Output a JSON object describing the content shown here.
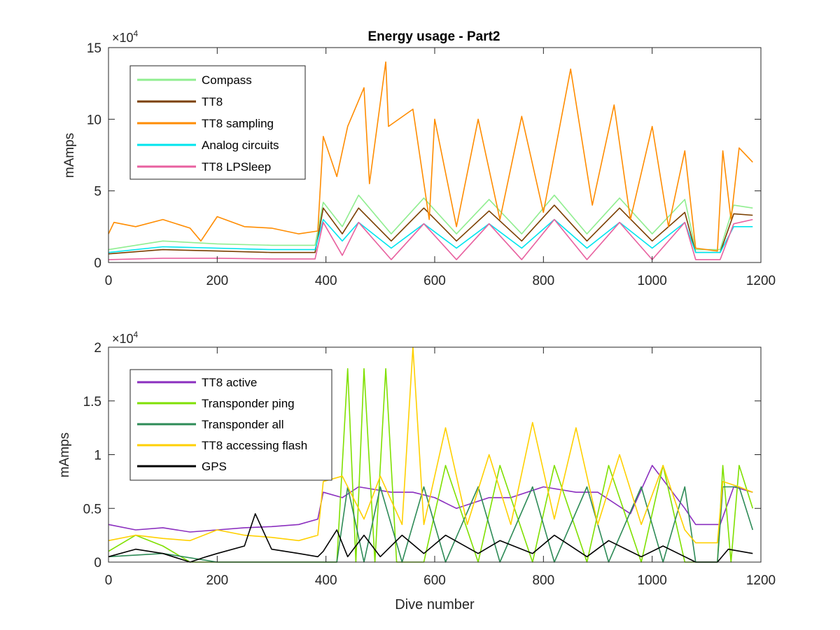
{
  "chart_data": [
    {
      "type": "line",
      "title": "Energy usage - Part2",
      "xlabel": "",
      "ylabel": "mAmps",
      "exponent_label": "×10",
      "exponent_power": "4",
      "xlim": [
        0,
        1200
      ],
      "ylim": [
        0,
        150000
      ],
      "xticks": [
        0,
        200,
        400,
        600,
        800,
        1000,
        1200
      ],
      "yticks": [
        0,
        50000,
        100000,
        150000
      ],
      "ytick_labels": [
        "0",
        "5",
        "10",
        "15"
      ],
      "legend_position": "top-left",
      "series": [
        {
          "name": "Compass",
          "color": "#90ee90",
          "x": [
            0,
            100,
            200,
            300,
            380,
            395,
            430,
            460,
            520,
            580,
            640,
            700,
            760,
            820,
            880,
            940,
            1000,
            1060,
            1080,
            1125,
            1150,
            1185
          ],
          "y": [
            9000,
            15000,
            13000,
            12000,
            12000,
            42000,
            25000,
            47000,
            20000,
            45000,
            20000,
            44000,
            20000,
            47000,
            20000,
            45000,
            20000,
            44000,
            9000,
            9000,
            40000,
            38000
          ]
        },
        {
          "name": "TT8",
          "color": "#7b3f00",
          "x": [
            0,
            100,
            200,
            300,
            380,
            395,
            430,
            460,
            520,
            580,
            640,
            700,
            760,
            820,
            880,
            940,
            1000,
            1060,
            1080,
            1125,
            1150,
            1185
          ],
          "y": [
            6000,
            9000,
            8000,
            7000,
            7000,
            38000,
            20000,
            38000,
            15000,
            38000,
            15000,
            36000,
            15000,
            40000,
            15000,
            38000,
            15000,
            35000,
            7000,
            7000,
            34000,
            33000
          ]
        },
        {
          "name": "TT8 sampling",
          "color": "#ff8c00",
          "x": [
            0,
            10,
            50,
            100,
            150,
            170,
            200,
            250,
            300,
            350,
            385,
            395,
            420,
            440,
            470,
            480,
            510,
            515,
            560,
            590,
            600,
            640,
            680,
            720,
            760,
            800,
            850,
            890,
            930,
            960,
            1000,
            1030,
            1060,
            1080,
            1120,
            1130,
            1145,
            1160,
            1185
          ],
          "y": [
            20000,
            28000,
            25000,
            30000,
            24000,
            15000,
            32000,
            25000,
            24000,
            20000,
            22000,
            88000,
            60000,
            95000,
            122000,
            55000,
            140000,
            95000,
            107000,
            30000,
            100000,
            25000,
            100000,
            30000,
            102000,
            35000,
            135000,
            40000,
            110000,
            30000,
            95000,
            25000,
            78000,
            10000,
            8000,
            78000,
            30000,
            80000,
            70000
          ]
        },
        {
          "name": "Analog circuits",
          "color": "#00e5ee",
          "x": [
            0,
            100,
            200,
            300,
            380,
            395,
            430,
            460,
            520,
            580,
            640,
            700,
            760,
            820,
            880,
            940,
            1000,
            1060,
            1080,
            1125,
            1150,
            1185
          ],
          "y": [
            7000,
            11000,
            10000,
            9000,
            9000,
            30000,
            15000,
            28000,
            10000,
            27000,
            10000,
            27000,
            10000,
            30000,
            10000,
            28000,
            10000,
            28000,
            7000,
            7000,
            25000,
            25000
          ]
        },
        {
          "name": "TT8 LPSleep",
          "color": "#e8609f",
          "x": [
            0,
            100,
            200,
            300,
            380,
            395,
            430,
            460,
            520,
            580,
            640,
            700,
            760,
            820,
            880,
            940,
            1000,
            1060,
            1080,
            1125,
            1150,
            1185
          ],
          "y": [
            2000,
            3000,
            3000,
            2500,
            2500,
            28000,
            5000,
            28000,
            2000,
            27000,
            2000,
            27000,
            2000,
            30000,
            2000,
            28000,
            2000,
            28000,
            2000,
            2000,
            27000,
            30000
          ]
        }
      ]
    },
    {
      "type": "line",
      "title": "",
      "xlabel": "Dive number",
      "ylabel": "mAmps",
      "exponent_label": "×10",
      "exponent_power": "4",
      "xlim": [
        0,
        1200
      ],
      "ylim": [
        0,
        20000
      ],
      "xticks": [
        0,
        200,
        400,
        600,
        800,
        1000,
        1200
      ],
      "yticks": [
        0,
        5000,
        10000,
        15000,
        20000
      ],
      "ytick_labels": [
        "0",
        "0.5",
        "1",
        "1.5",
        "2"
      ],
      "legend_position": "top-left",
      "series": [
        {
          "name": "TT8 active",
          "color": "#8b2fbf",
          "x": [
            0,
            50,
            100,
            150,
            200,
            250,
            300,
            350,
            385,
            395,
            430,
            460,
            520,
            560,
            600,
            640,
            700,
            740,
            800,
            860,
            900,
            960,
            1000,
            1060,
            1080,
            1125,
            1150,
            1185
          ],
          "y": [
            3500,
            3000,
            3200,
            2800,
            3000,
            3200,
            3300,
            3500,
            4000,
            6500,
            6000,
            7000,
            6500,
            6500,
            6000,
            5000,
            6000,
            6000,
            7000,
            6500,
            6500,
            4500,
            9000,
            5000,
            3500,
            3500,
            7000,
            6500
          ]
        },
        {
          "name": "Transponder ping",
          "color": "#7fe000",
          "x": [
            0,
            50,
            100,
            150,
            200,
            300,
            395,
            420,
            440,
            455,
            470,
            490,
            510,
            530,
            580,
            620,
            680,
            720,
            780,
            820,
            880,
            920,
            980,
            1020,
            1060,
            1080,
            1120,
            1130,
            1145,
            1160,
            1185
          ],
          "y": [
            1000,
            2500,
            1500,
            0,
            0,
            0,
            0,
            0,
            18000,
            0,
            18000,
            0,
            18000,
            0,
            0,
            9000,
            0,
            9000,
            0,
            9000,
            0,
            9000,
            0,
            9000,
            0,
            0,
            0,
            9000,
            0,
            9000,
            5000
          ]
        },
        {
          "name": "Transponder all",
          "color": "#2e8b57",
          "x": [
            0,
            100,
            200,
            300,
            395,
            420,
            440,
            470,
            500,
            540,
            580,
            620,
            680,
            720,
            780,
            820,
            880,
            920,
            980,
            1020,
            1060,
            1080,
            1120,
            1130,
            1160,
            1185
          ],
          "y": [
            500,
            800,
            0,
            0,
            0,
            0,
            7000,
            0,
            7000,
            0,
            7000,
            0,
            7000,
            0,
            7000,
            0,
            7000,
            0,
            7000,
            0,
            7000,
            0,
            0,
            7000,
            7000,
            3000
          ]
        },
        {
          "name": "TT8 accessing flash",
          "color": "#ffd000",
          "x": [
            0,
            50,
            100,
            150,
            200,
            250,
            300,
            350,
            385,
            395,
            430,
            470,
            500,
            540,
            560,
            580,
            620,
            660,
            700,
            740,
            780,
            820,
            860,
            900,
            940,
            980,
            1020,
            1060,
            1080,
            1120,
            1130,
            1160,
            1185
          ],
          "y": [
            2000,
            2500,
            2200,
            2000,
            3000,
            2500,
            2300,
            2000,
            2500,
            7500,
            8000,
            4000,
            8000,
            3500,
            20000,
            3500,
            12500,
            3500,
            10000,
            3500,
            13000,
            4000,
            12500,
            3500,
            10000,
            3500,
            9000,
            3000,
            1800,
            1800,
            7500,
            7000,
            6500
          ]
        },
        {
          "name": "GPS",
          "color": "#000000",
          "x": [
            0,
            50,
            100,
            150,
            180,
            200,
            250,
            270,
            300,
            350,
            385,
            395,
            420,
            440,
            470,
            500,
            540,
            580,
            620,
            680,
            720,
            780,
            820,
            880,
            920,
            980,
            1020,
            1060,
            1080,
            1120,
            1140,
            1185
          ],
          "y": [
            500,
            1200,
            800,
            0,
            500,
            800,
            1500,
            4500,
            1200,
            800,
            500,
            1000,
            3000,
            500,
            2500,
            500,
            2500,
            800,
            2500,
            800,
            2000,
            800,
            2500,
            500,
            2000,
            500,
            1500,
            500,
            0,
            0,
            1200,
            800
          ]
        }
      ]
    }
  ]
}
